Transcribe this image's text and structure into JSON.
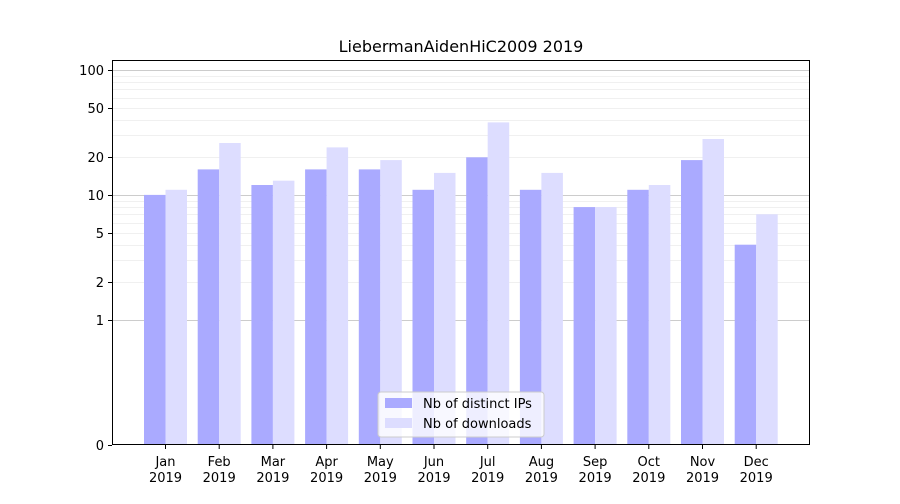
{
  "chart_data": {
    "type": "bar",
    "title": "LiebermanAidenHiC2009 2019",
    "xlabel": "",
    "ylabel": "",
    "yscale": "symlog",
    "categories": [
      "Jan\n2019",
      "Feb\n2019",
      "Mar\n2019",
      "Apr\n2019",
      "May\n2019",
      "Jun\n2019",
      "Jul\n2019",
      "Aug\n2019",
      "Sep\n2019",
      "Oct\n2019",
      "Nov\n2019",
      "Dec\n2019"
    ],
    "series": [
      {
        "name": "Nb of distinct IPs",
        "color": "#aaaaff",
        "values": [
          10,
          16,
          12,
          16,
          16,
          11,
          20,
          11,
          8,
          11,
          19,
          4
        ]
      },
      {
        "name": "Nb of downloads",
        "color": "#ddddff",
        "values": [
          11,
          26,
          13,
          24,
          19,
          15,
          38,
          15,
          8,
          12,
          28,
          7
        ]
      }
    ],
    "yticks": [
      0,
      1,
      2,
      5,
      10,
      20,
      50,
      100
    ],
    "ytick_labels": [
      "0",
      "1",
      "2",
      "5",
      "10",
      "20",
      "50",
      "100"
    ],
    "ylim": [
      0,
      120
    ],
    "grid": true,
    "legend_position": "bottom-center"
  }
}
